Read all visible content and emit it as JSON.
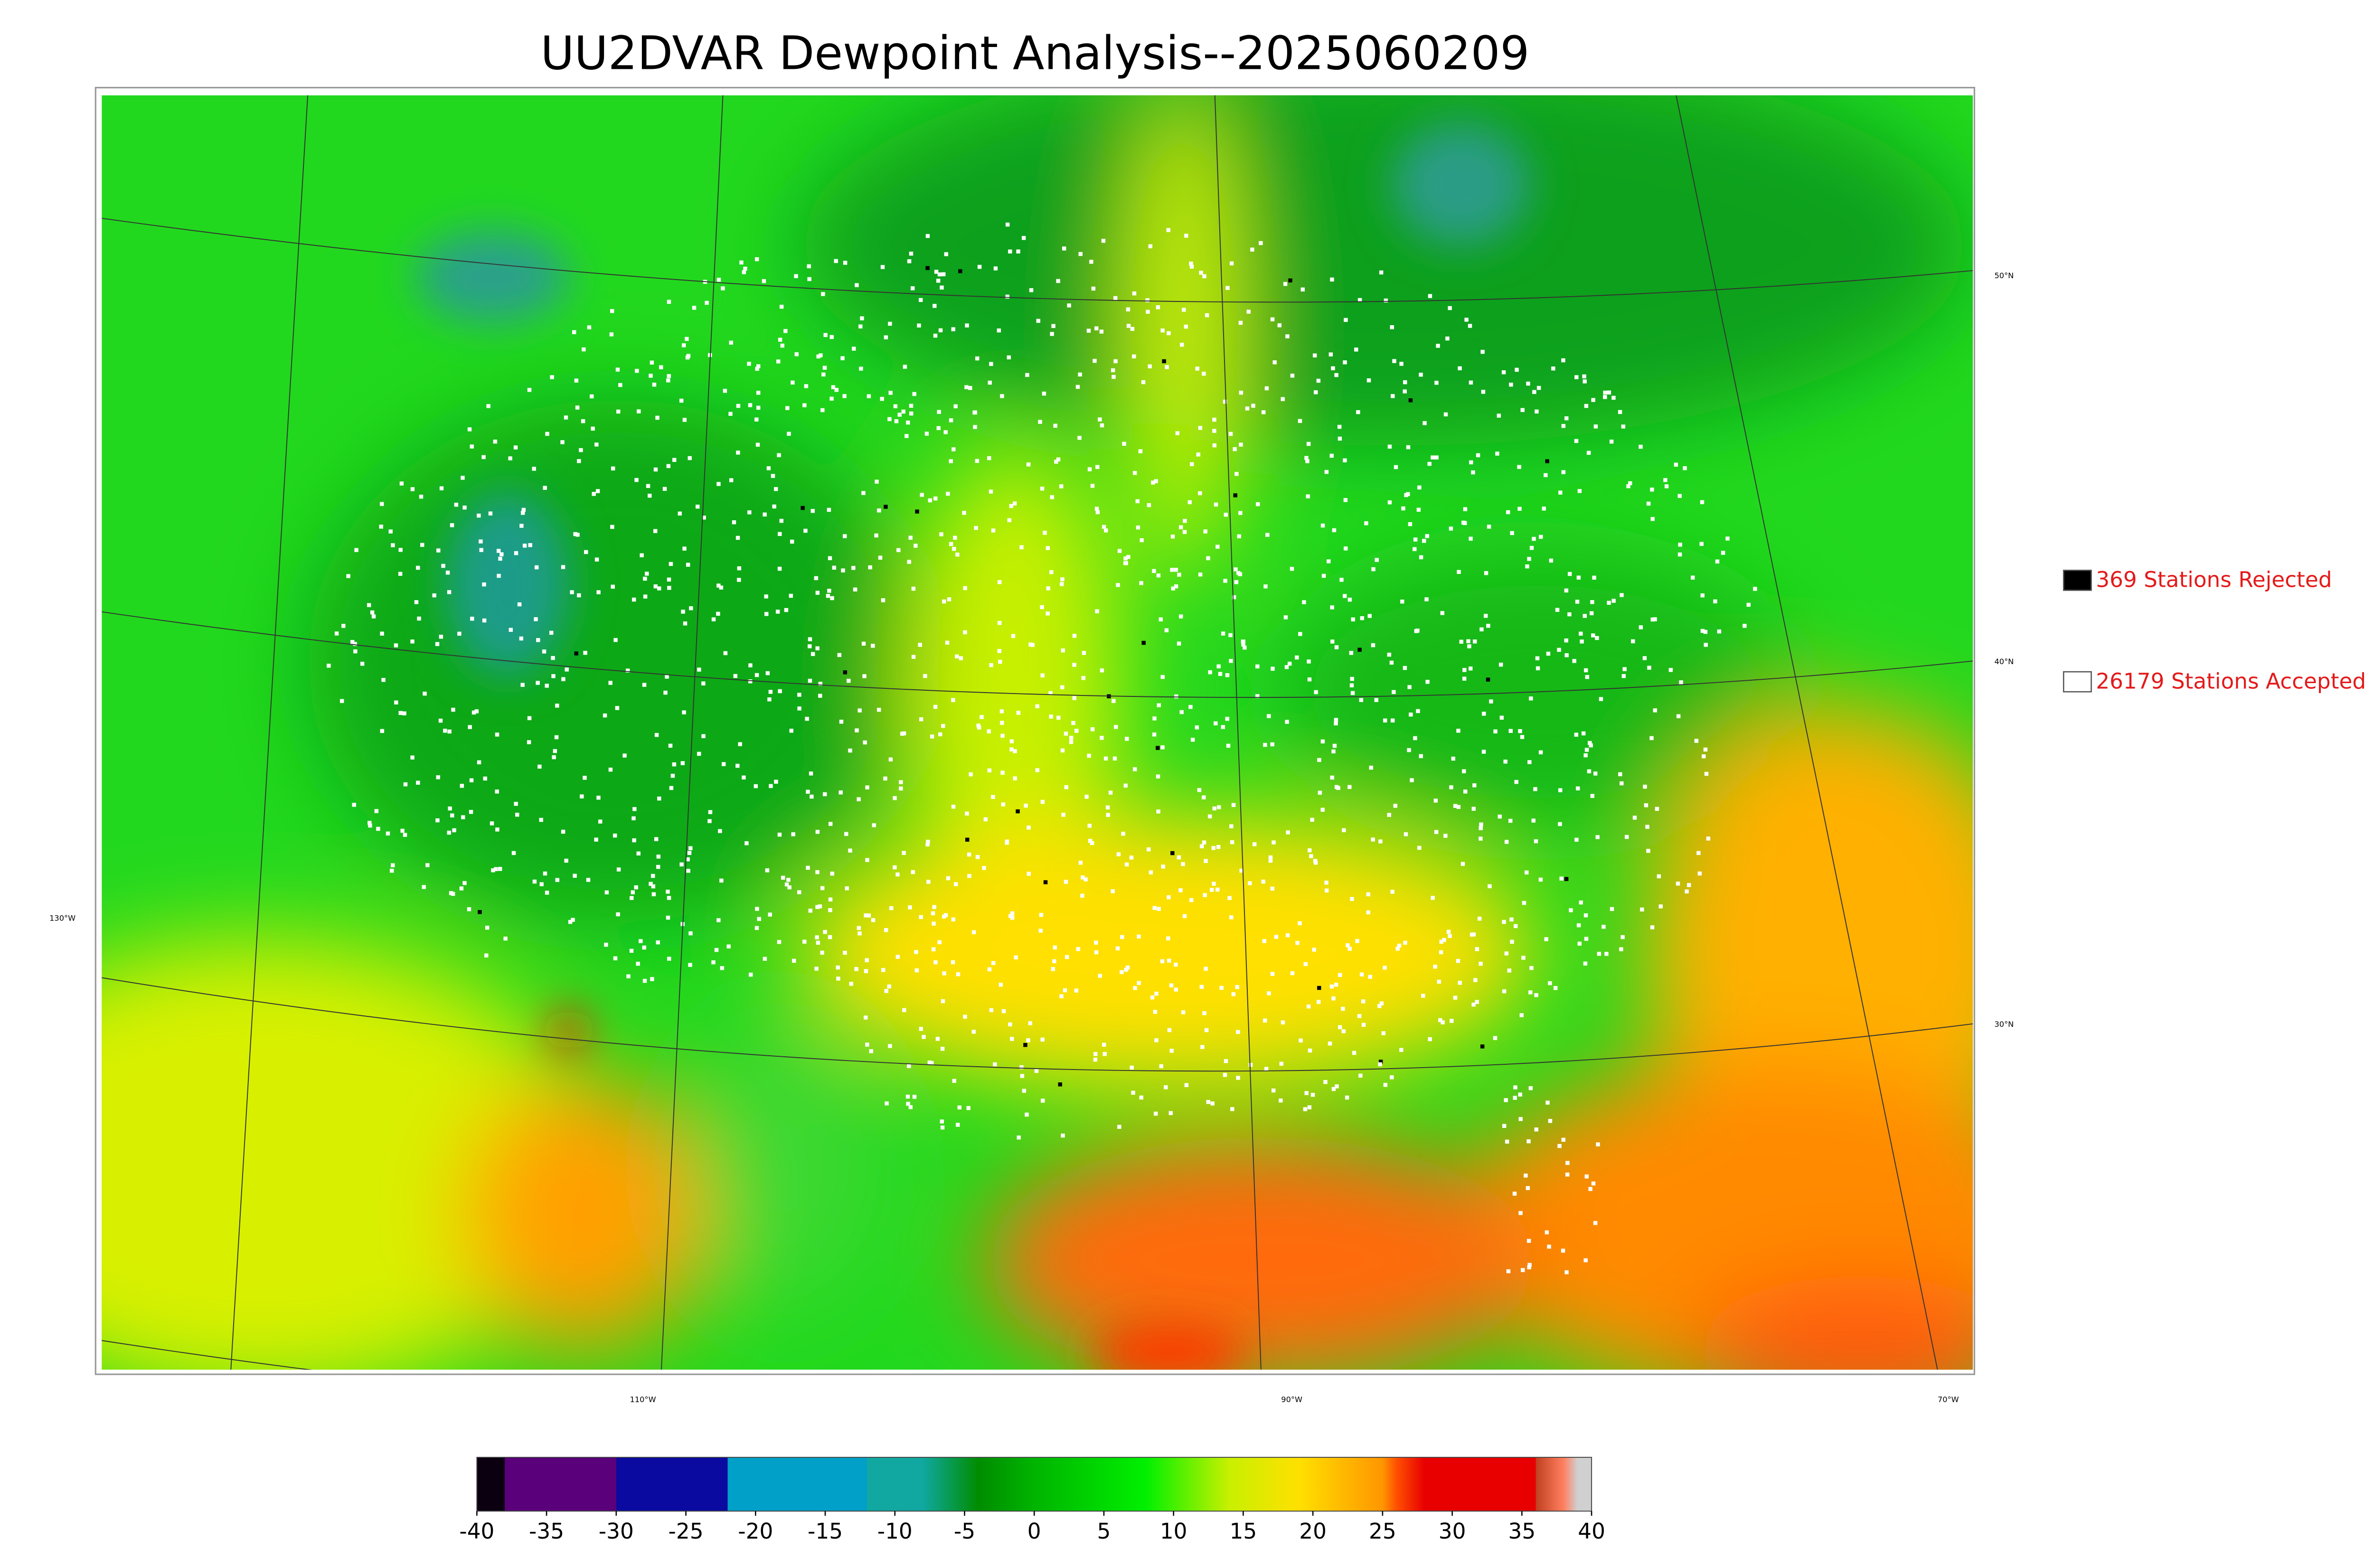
{
  "title": "UU2DVAR Dewpoint Analysis--2025060209",
  "legend": [
    {
      "text": "369 Stations Rejected",
      "color": "#000000"
    },
    {
      "text": "26179 Stations Accepted",
      "color": "#ffffff"
    }
  ],
  "lat_labels": [
    "50°N",
    "40°N",
    "30°N"
  ],
  "lon_labels": [
    "130°W",
    "110°W",
    "90°W",
    "70°W"
  ],
  "colorbar": {
    "lim": [
      -40,
      40
    ],
    "ticks": [
      -40,
      -35,
      -30,
      -25,
      -20,
      -15,
      -10,
      -5,
      0,
      5,
      10,
      15,
      20,
      25,
      30,
      35,
      40
    ],
    "stops": [
      {
        "value": -40,
        "color": "#0a0010"
      },
      {
        "value": -38,
        "color": "#0a0010"
      },
      {
        "value": -38,
        "color": "#5a007a"
      },
      {
        "value": -30,
        "color": "#5a007a"
      },
      {
        "value": -30,
        "color": "#0a0aa0"
      },
      {
        "value": -22,
        "color": "#0a0aa0"
      },
      {
        "value": -22,
        "color": "#00a0c8"
      },
      {
        "value": -12,
        "color": "#00a0c8"
      },
      {
        "value": -12,
        "color": "#10a8a0"
      },
      {
        "value": -8,
        "color": "#10a8a0"
      },
      {
        "value": -4,
        "color": "#008c00"
      },
      {
        "value": 0,
        "color": "#00b400"
      },
      {
        "value": 8,
        "color": "#00f000"
      },
      {
        "value": 14,
        "color": "#c8f000"
      },
      {
        "value": 19,
        "color": "#ffe000"
      },
      {
        "value": 25,
        "color": "#ff9600"
      },
      {
        "value": 26,
        "color": "#ff5000"
      },
      {
        "value": 28,
        "color": "#e80000"
      },
      {
        "value": 36,
        "color": "#e80000"
      },
      {
        "value": 36,
        "color": "#c04020"
      },
      {
        "value": 38,
        "color": "#ff8060"
      },
      {
        "value": 39,
        "color": "#d0d0d0"
      },
      {
        "value": 40,
        "color": "#d0d0d0"
      }
    ]
  }
}
